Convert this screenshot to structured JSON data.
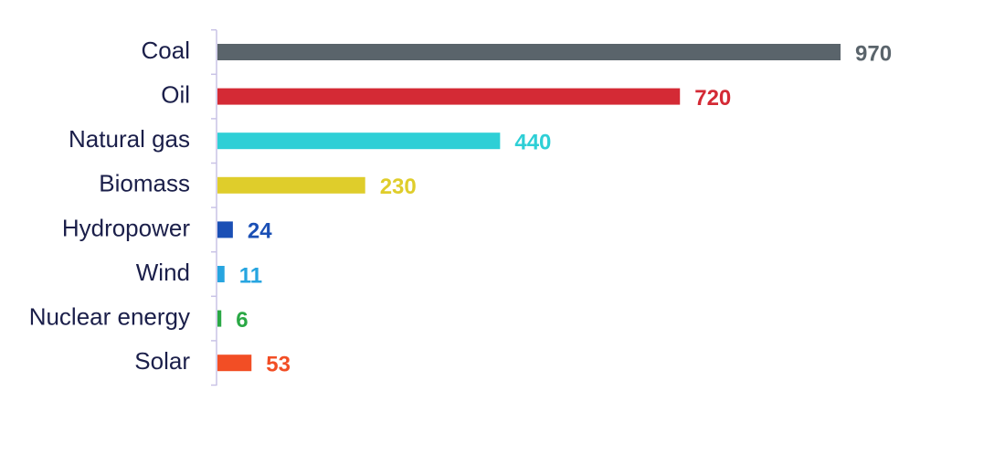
{
  "chart_data": {
    "type": "bar",
    "orientation": "horizontal",
    "title": "",
    "xlabel": "",
    "ylabel": "",
    "xlim": [
      0,
      970
    ],
    "grid": false,
    "legend": "none",
    "categories": [
      "Coal",
      "Oil",
      "Natural gas",
      "Biomass",
      "Hydropower",
      "Wind",
      "Nuclear energy",
      "Solar"
    ],
    "values": [
      970,
      720,
      440,
      230,
      24,
      11,
      6,
      53
    ],
    "value_labels": [
      "970",
      "720",
      "440",
      "230",
      "24",
      "11",
      "6",
      "53"
    ],
    "colors": [
      "#5a646b",
      "#d42a35",
      "#2ecfd6",
      "#dfcd2b",
      "#1a4fb5",
      "#27a5e0",
      "#2aa845",
      "#f24e25"
    ],
    "axis_color": "#c9c3e6",
    "category_label_color": "#1b1f4a"
  }
}
